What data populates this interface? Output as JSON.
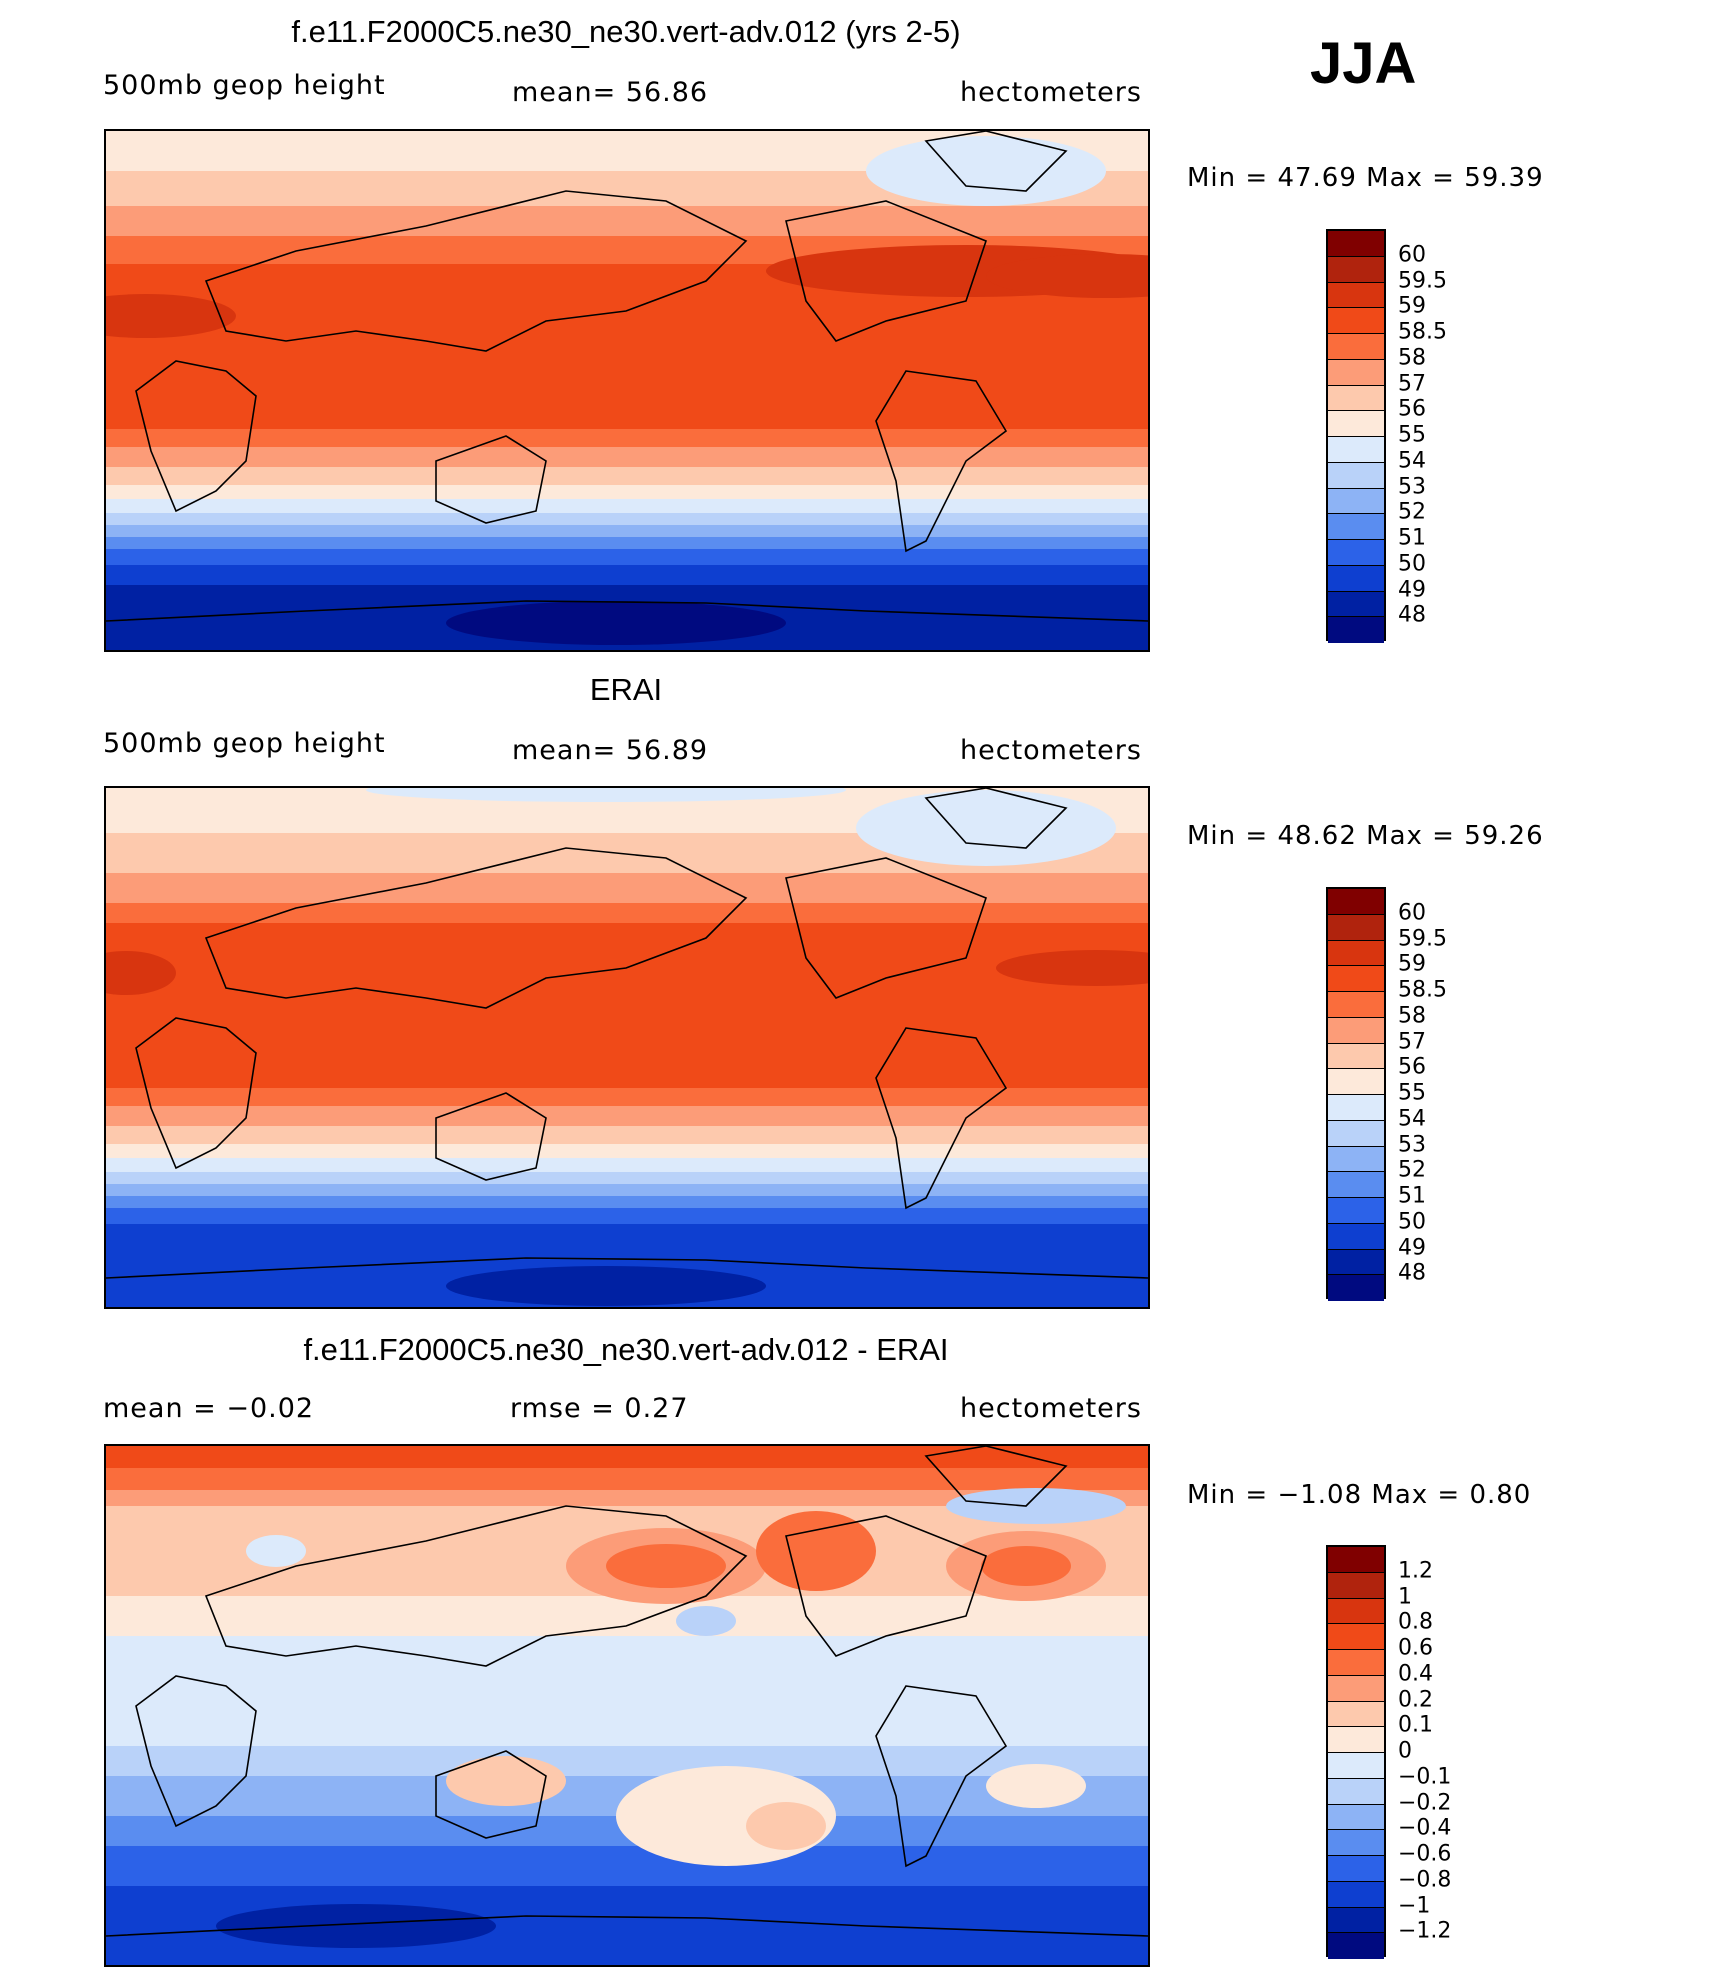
{
  "season": "JJA",
  "panels": [
    {
      "id": "model",
      "title": "f.e11.F2000C5.ne30_ne30.vert-adv.012 (yrs 2-5)",
      "left_label": "500mb  geop  height",
      "center_label": "mean=   56.86",
      "right_label": "hectometers",
      "minmax_label": "Min  =   47.69  Max  =   59.39"
    },
    {
      "id": "obs",
      "title": "ERAI",
      "left_label": "500mb  geop  height",
      "center_label": "mean=   56.89",
      "right_label": "hectometers",
      "minmax_label": "Min  =   48.62  Max  =   59.26"
    },
    {
      "id": "diff",
      "title": "f.e11.F2000C5.ne30_ne30.vert-adv.012 - ERAI",
      "left_label": "mean  =    −0.02",
      "center_label": "rmse  =     0.27",
      "right_label": "hectometers",
      "minmax_label": "Min  =   −1.08  Max  =    0.80"
    }
  ],
  "chart_data": [
    {
      "type": "heatmap",
      "title": "f.e11.F2000C5.ne30_ne30.vert-adv.012 (yrs 2-5)",
      "variable": "500mb geop height",
      "units": "hectometers",
      "mean": 56.86,
      "min": 47.69,
      "max": 59.39,
      "x_range": [
        0,
        360
      ],
      "y_range": [
        -90,
        90
      ],
      "levels": [
        "60",
        "59.5",
        "59",
        "58.5",
        "58",
        "57",
        "56",
        "55",
        "54",
        "53",
        "52",
        "51",
        "50",
        "49",
        "48"
      ],
      "colors": [
        "#800000",
        "#b0230d",
        "#d8350f",
        "#f04a18",
        "#fa6d3c",
        "#fc9c78",
        "#fdc9ad",
        "#fde9da",
        "#dceafb",
        "#b9d2f9",
        "#8db3f5",
        "#5a8df0",
        "#2c62e8",
        "#0e3fd0",
        "#0021a3",
        "#000a80"
      ]
    },
    {
      "type": "heatmap",
      "title": "ERAI",
      "variable": "500mb geop height",
      "units": "hectometers",
      "mean": 56.89,
      "min": 48.62,
      "max": 59.26,
      "x_range": [
        0,
        360
      ],
      "y_range": [
        -90,
        90
      ],
      "levels": [
        "60",
        "59.5",
        "59",
        "58.5",
        "58",
        "57",
        "56",
        "55",
        "54",
        "53",
        "52",
        "51",
        "50",
        "49",
        "48"
      ],
      "colors": [
        "#800000",
        "#b0230d",
        "#d8350f",
        "#f04a18",
        "#fa6d3c",
        "#fc9c78",
        "#fdc9ad",
        "#fde9da",
        "#dceafb",
        "#b9d2f9",
        "#8db3f5",
        "#5a8df0",
        "#2c62e8",
        "#0e3fd0",
        "#0021a3",
        "#000a80"
      ]
    },
    {
      "type": "heatmap",
      "title": "f.e11.F2000C5.ne30_ne30.vert-adv.012 - ERAI",
      "units": "hectometers",
      "mean": -0.02,
      "rmse": 0.27,
      "min": -1.08,
      "max": 0.8,
      "x_range": [
        0,
        360
      ],
      "y_range": [
        -90,
        90
      ],
      "levels": [
        "1.2",
        "1",
        "0.8",
        "0.6",
        "0.4",
        "0.2",
        "0.1",
        "0",
        "−0.1",
        "−0.2",
        "−0.4",
        "−0.6",
        "−0.8",
        "−1",
        "−1.2"
      ],
      "colors": [
        "#800000",
        "#b0230d",
        "#d8350f",
        "#f04a18",
        "#fa6d3c",
        "#fc9c78",
        "#fdc9ad",
        "#fde9da",
        "#dceafb",
        "#b9d2f9",
        "#8db3f5",
        "#5a8df0",
        "#2c62e8",
        "#0e3fd0",
        "#0021a3",
        "#000a80"
      ]
    }
  ]
}
